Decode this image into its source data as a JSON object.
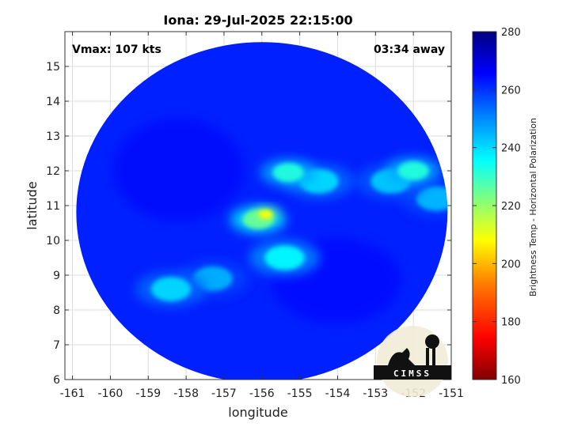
{
  "chart_data": {
    "type": "heatmap",
    "title": "Iona: 29-Jul-2025 22:15:00",
    "xlabel": "longitude",
    "ylabel": "latitude",
    "xlim": [
      -161.2,
      -151
    ],
    "ylim": [
      6,
      16
    ],
    "xticks": [
      -161,
      -160,
      -159,
      -158,
      -157,
      -156,
      -155,
      -154,
      -153,
      -152,
      -151
    ],
    "yticks": [
      6,
      7,
      8,
      9,
      10,
      11,
      12,
      13,
      14,
      15
    ],
    "grid": true,
    "annotations": {
      "vmax": "Vmax: 107 kts",
      "time_away": "03:34 away"
    },
    "swath": {
      "center": [
        -156.0,
        10.8
      ],
      "radius_deg_x": 4.9,
      "radius_deg_y": 4.9
    },
    "background_value": 262,
    "features": [
      {
        "lon": -155.9,
        "lat": 10.75,
        "value": 208
      },
      {
        "lon": -156.1,
        "lat": 10.6,
        "value": 225
      },
      {
        "lon": -155.3,
        "lat": 11.95,
        "value": 232
      },
      {
        "lon": -154.5,
        "lat": 11.7,
        "value": 240
      },
      {
        "lon": -152.0,
        "lat": 12.0,
        "value": 232
      },
      {
        "lon": -152.6,
        "lat": 11.7,
        "value": 242
      },
      {
        "lon": -158.4,
        "lat": 8.6,
        "value": 240
      },
      {
        "lon": -157.3,
        "lat": 8.9,
        "value": 245
      },
      {
        "lon": -155.4,
        "lat": 9.5,
        "value": 236
      },
      {
        "lon": -151.4,
        "lat": 11.2,
        "value": 244
      }
    ],
    "colorbar": {
      "label": "Brightness Temp - Horizontal Polarization",
      "min": 160,
      "max": 280,
      "ticks": [
        160,
        180,
        200,
        220,
        240,
        260,
        280
      ],
      "colors": [
        "#800000",
        "#ff0000",
        "#ff8000",
        "#ffff00",
        "#80ff80",
        "#00ffff",
        "#0080ff",
        "#0000ff",
        "#000080"
      ]
    },
    "logo_text": "CIMSS"
  }
}
